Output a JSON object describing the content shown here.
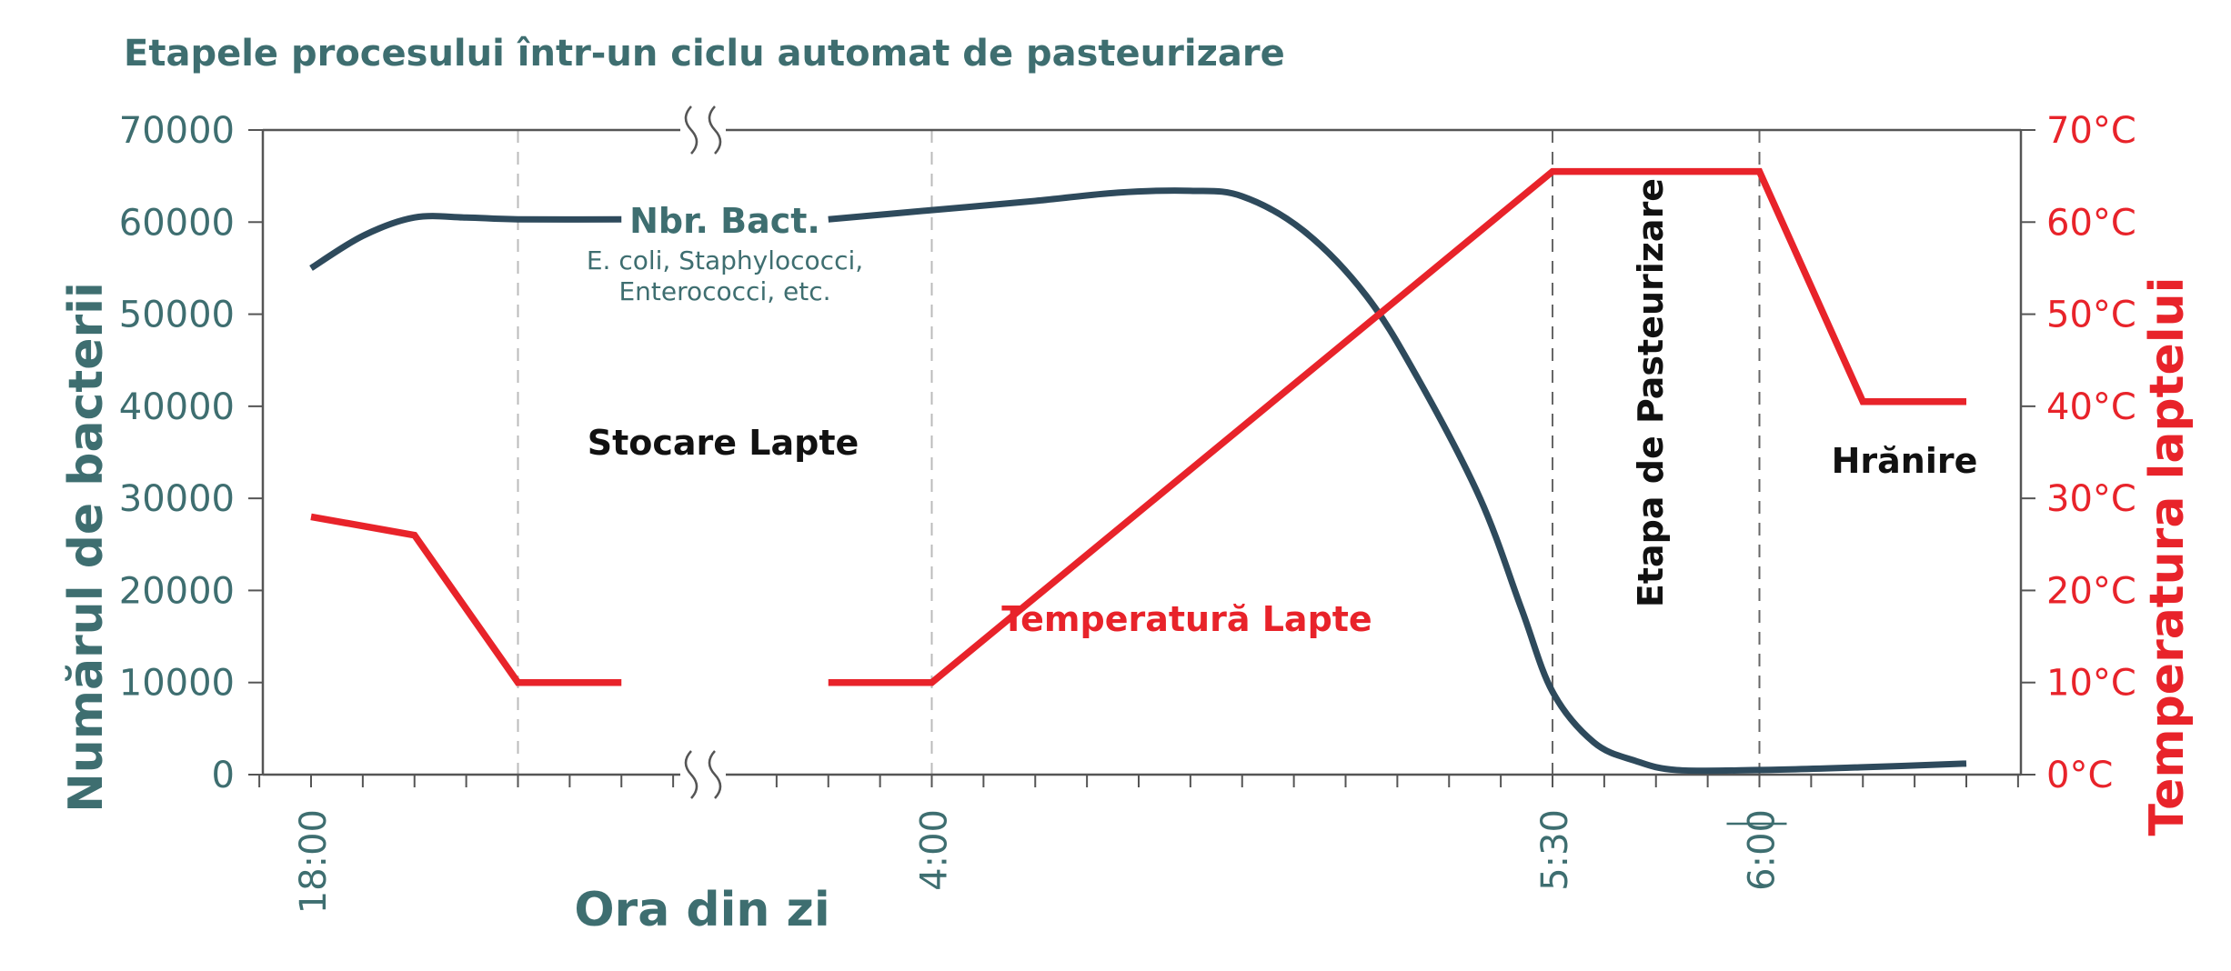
{
  "chart_data": {
    "type": "line",
    "title": "Etapele procesului într-un ciclu automat de pasteurizare",
    "xlabel": "Ora din zi",
    "ylabel_left": "Numărul de bacterii",
    "ylabel_right": "Temperatura laptelui",
    "x_tick_labels": [
      "18:00",
      "4:00",
      "5:30",
      "6:00"
    ],
    "y_left_ticks": [
      "0",
      "10000",
      "20000",
      "30000",
      "40000",
      "50000",
      "60000",
      "70000"
    ],
    "y_left_range": [
      0,
      70000
    ],
    "y_right_ticks": [
      "0°C",
      "10°C",
      "20°C",
      "30°C",
      "40°C",
      "50°C",
      "60°C",
      "70°C"
    ],
    "y_right_range": [
      0,
      70
    ],
    "axis_break": true,
    "series": [
      {
        "name": "Nbr. Bact.",
        "subtitle_line1": "E. coli, Staphylococci,",
        "subtitle_line2": "Enterococci, etc.",
        "axis": "left",
        "color": "#2e4a5c",
        "segments": [
          [
            [
              0,
              55000
            ],
            [
              0.5,
              58500
            ],
            [
              1,
              60500
            ],
            [
              1.5,
              60500
            ],
            [
              2,
              60300
            ],
            [
              3,
              60300
            ]
          ],
          [
            [
              5,
              60300
            ],
            [
              6,
              61300
            ],
            [
              7,
              62300
            ],
            [
              7.8,
              63200
            ],
            [
              8.5,
              63400
            ],
            [
              9,
              62800
            ],
            [
              9.6,
              59000
            ],
            [
              10.2,
              52000
            ],
            [
              10.7,
              43000
            ],
            [
              11.3,
              30000
            ],
            [
              11.7,
              18000
            ],
            [
              12,
              9000
            ],
            [
              12.4,
              3500
            ],
            [
              12.8,
              1500
            ],
            [
              13.2,
              500
            ],
            [
              14,
              500
            ],
            [
              15,
              800
            ],
            [
              16,
              1200
            ]
          ]
        ]
      },
      {
        "name": "Temperatură Lapte",
        "axis": "right",
        "color": "#e8232a",
        "segments": [
          [
            [
              0,
              28
            ],
            [
              1,
              26
            ],
            [
              2,
              10
            ],
            [
              3,
              10
            ]
          ],
          [
            [
              5,
              10
            ],
            [
              6,
              10
            ],
            [
              12,
              65.5
            ],
            [
              14,
              65.5
            ],
            [
              15,
              40.5
            ],
            [
              16,
              40.5
            ]
          ]
        ]
      }
    ],
    "annotations": {
      "storage": "Stocare Lapte",
      "pasteurization": "Etapa de Pasteurizare",
      "feeding": "Hrănire"
    },
    "colors": {
      "bacteria": "#2e4a5c",
      "temperature": "#e8232a",
      "teal_text": "#3e6e70"
    }
  }
}
